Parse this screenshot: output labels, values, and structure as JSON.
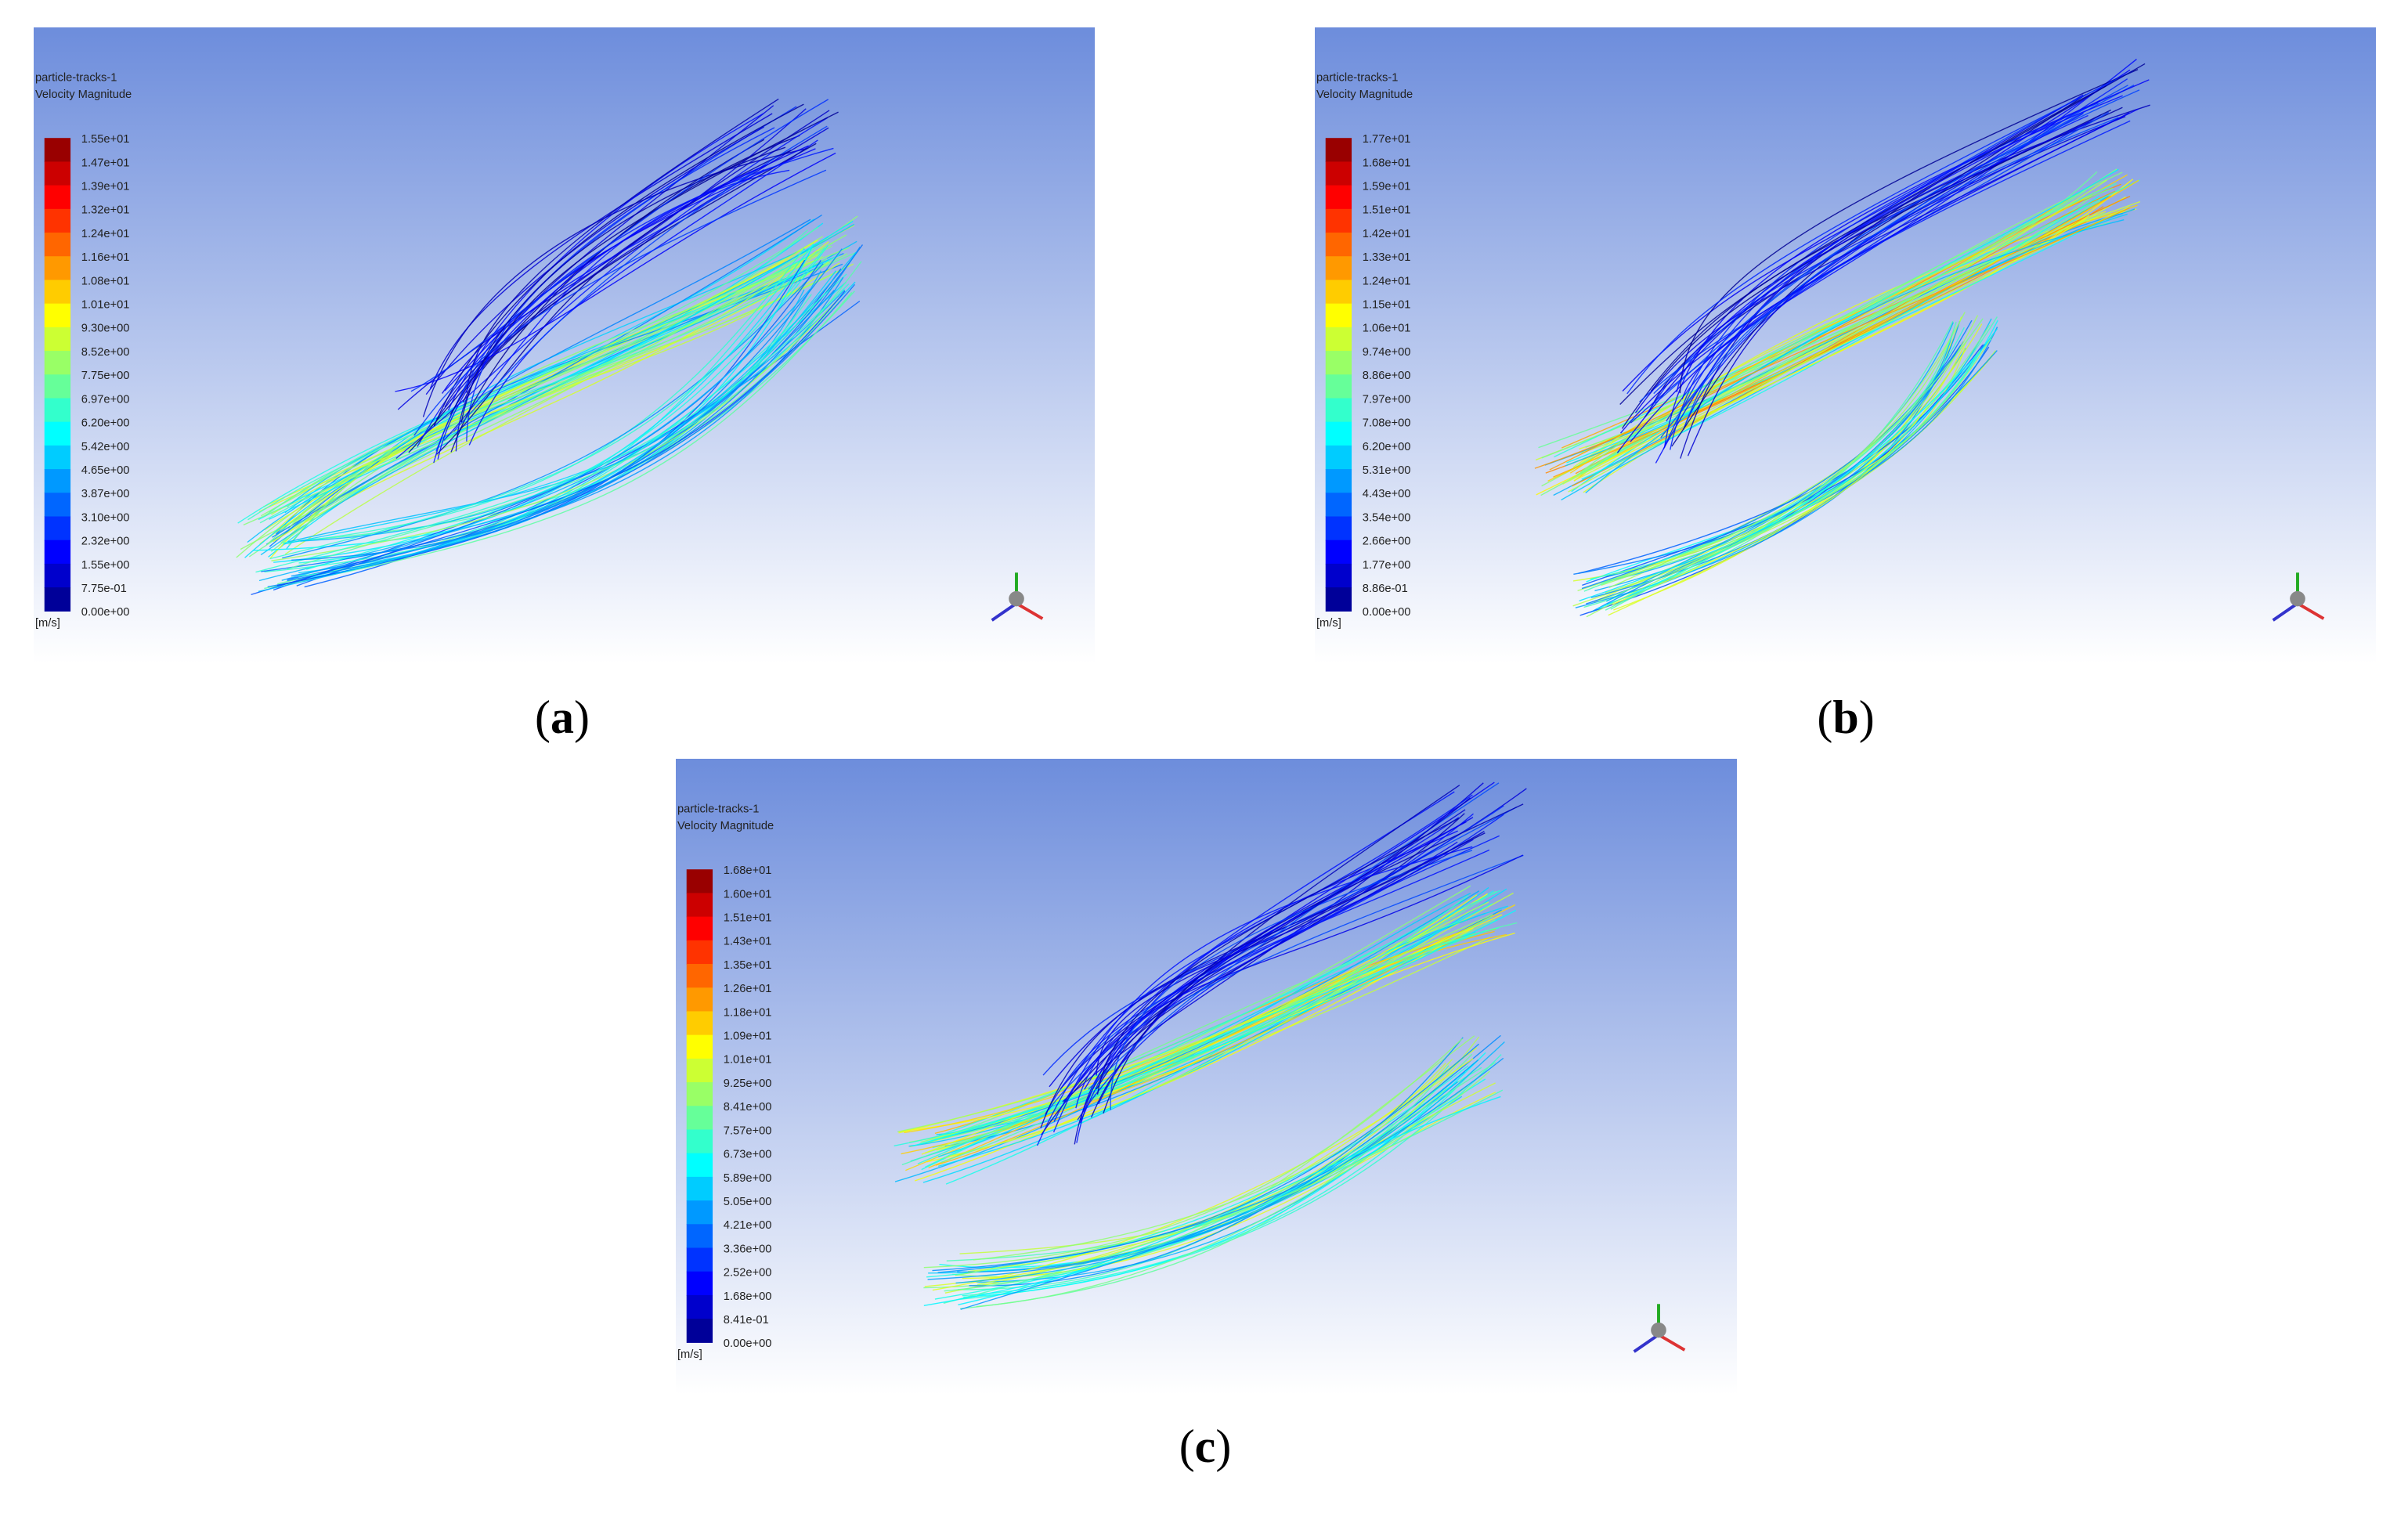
{
  "panels": [
    {
      "title": "particle-tracks-1",
      "subtitle": "Velocity Magnitude",
      "unit": "[m/s]",
      "caption": "a",
      "legend": [
        "1.55e+01",
        "1.47e+01",
        "1.39e+01",
        "1.32e+01",
        "1.24e+01",
        "1.16e+01",
        "1.08e+01",
        "1.01e+01",
        "9.30e+00",
        "8.52e+00",
        "7.75e+00",
        "6.97e+00",
        "6.20e+00",
        "5.42e+00",
        "4.65e+00",
        "3.87e+00",
        "3.10e+00",
        "2.32e+00",
        "1.55e+00",
        "7.75e-01",
        "0.00e+00"
      ]
    },
    {
      "title": "particle-tracks-1",
      "subtitle": "Velocity Magnitude",
      "unit": "[m/s]",
      "caption": "b",
      "legend": [
        "1.77e+01",
        "1.68e+01",
        "1.59e+01",
        "1.51e+01",
        "1.42e+01",
        "1.33e+01",
        "1.24e+01",
        "1.15e+01",
        "1.06e+01",
        "9.74e+00",
        "8.86e+00",
        "7.97e+00",
        "7.08e+00",
        "6.20e+00",
        "5.31e+00",
        "4.43e+00",
        "3.54e+00",
        "2.66e+00",
        "1.77e+00",
        "8.86e-01",
        "0.00e+00"
      ]
    },
    {
      "title": "particle-tracks-1",
      "subtitle": "Velocity Magnitude",
      "unit": "[m/s]",
      "caption": "c",
      "legend": [
        "1.68e+01",
        "1.60e+01",
        "1.51e+01",
        "1.43e+01",
        "1.35e+01",
        "1.26e+01",
        "1.18e+01",
        "1.09e+01",
        "1.01e+01",
        "9.25e+00",
        "8.41e+00",
        "7.57e+00",
        "6.73e+00",
        "5.89e+00",
        "5.05e+00",
        "4.21e+00",
        "3.36e+00",
        "2.52e+00",
        "1.68e+00",
        "8.41e-01",
        "0.00e+00"
      ]
    }
  ]
}
